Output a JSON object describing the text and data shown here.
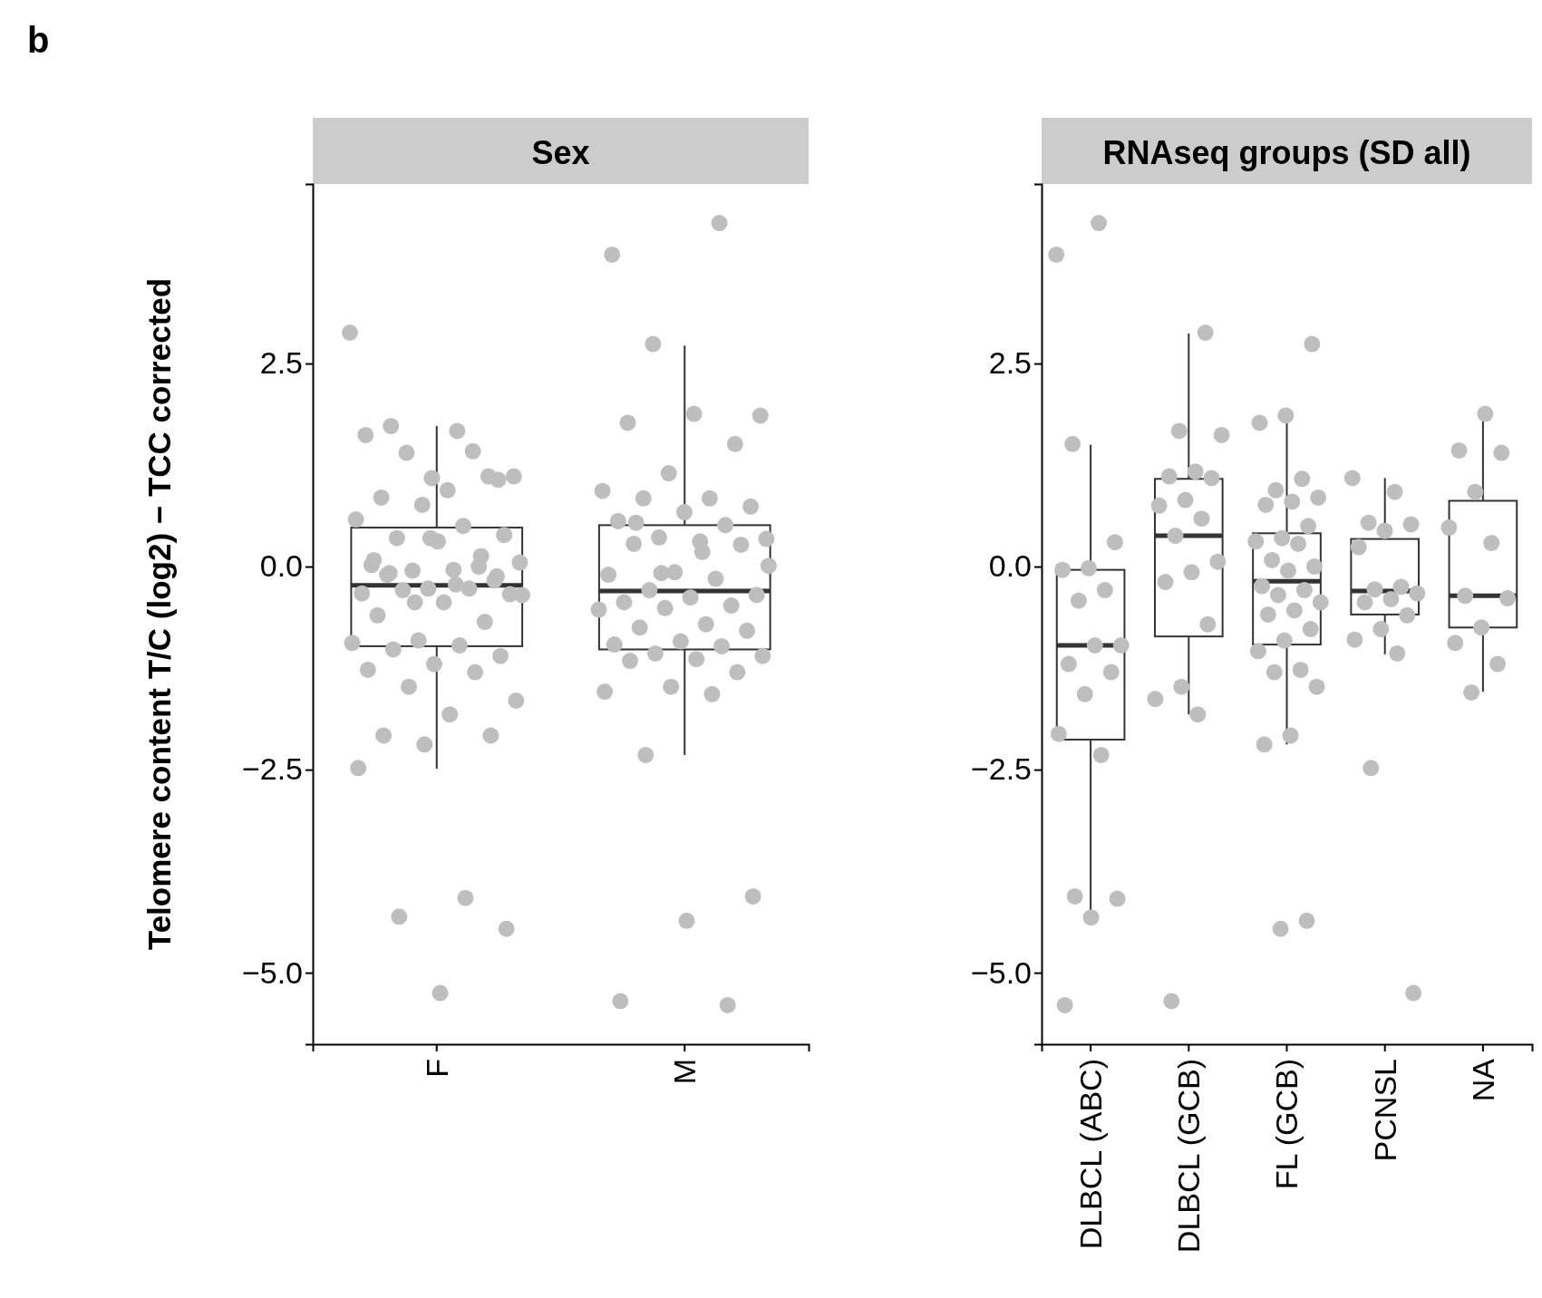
{
  "chart_data": [
    {
      "type": "box",
      "title": "Sex",
      "ylabel": "Telomere content T/C (log2) − TCC corrected",
      "annotations": [
        "b"
      ],
      "categories": [
        "F",
        "M"
      ],
      "boxes": [
        {
          "low": -2.49,
          "q1": -0.98,
          "median": -0.23,
          "q3": 0.48,
          "high": 1.73
        },
        {
          "low": -2.32,
          "q1": -1.02,
          "median": -0.3,
          "q3": 0.51,
          "high": 2.72
        }
      ],
      "ylim": [
        -5.88,
        4.71
      ],
      "yticks": [
        {
          "value": -5,
          "label": "−5.0"
        },
        {
          "value": -2.5,
          "label": "−2.5"
        },
        {
          "value": 0,
          "label": "0.0"
        },
        {
          "value": 2.5,
          "label": "2.5"
        }
      ],
      "series": [
        {
          "type": "scatter",
          "color": "#bebebe",
          "x": [
            "F",
            "F",
            "F",
            "F",
            "F",
            "F",
            "F",
            "F",
            "F",
            "F",
            "F",
            "F",
            "F",
            "F",
            "F",
            "F",
            "F",
            "F",
            "F",
            "F",
            "F",
            "F",
            "F",
            "F",
            "F",
            "F",
            "F",
            "F",
            "F",
            "F",
            "F",
            "F",
            "F",
            "F",
            "F",
            "F",
            "F",
            "F",
            "F",
            "F",
            "F",
            "F",
            "F",
            "F",
            "F",
            "F",
            "F",
            "F",
            "F",
            "F",
            "F",
            "F",
            "F",
            "F",
            "F",
            "F",
            "F",
            "F",
            "F",
            "F",
            "M",
            "M",
            "M",
            "M",
            "M",
            "M",
            "M",
            "M",
            "M",
            "M",
            "M",
            "M",
            "M",
            "M",
            "M",
            "M",
            "M",
            "M",
            "M",
            "M",
            "M",
            "M",
            "M",
            "M",
            "M",
            "M",
            "M",
            "M",
            "M",
            "M",
            "M",
            "M",
            "M",
            "M",
            "M",
            "M",
            "M",
            "M",
            "M",
            "M",
            "M",
            "M",
            "M",
            "M",
            "M",
            "M",
            "M",
            "M",
            "M",
            "M",
            "M",
            "M",
            "M"
          ],
          "values": [
            2.88,
            1.67,
            1.73,
            1.07,
            1.09,
            1.62,
            1.42,
            1.4,
            1.11,
            0.94,
            0.85,
            1.11,
            0.76,
            0.58,
            0.5,
            0.35,
            0.39,
            0.31,
            0.02,
            0,
            -0.05,
            0.05,
            -0.04,
            -0.1,
            -0.17,
            -0.27,
            -0.33,
            -0.27,
            -0.29,
            -0.34,
            -0.44,
            -0.6,
            -0.68,
            -0.91,
            -0.94,
            -0.97,
            -1.02,
            -1.1,
            -1.2,
            -1.27,
            -1.3,
            -1.48,
            -1.65,
            -1.82,
            -2.08,
            -2.08,
            -2.19,
            -2.48,
            -4.08,
            -4.31,
            -4.46,
            -5.25,
            0.08,
            0.13,
            -0.44,
            -0.35,
            -0.22,
            -0.08,
            -0.12,
            0.35,
            3.84,
            4.23,
            2.74,
            1.86,
            1.88,
            1.77,
            1.51,
            1.15,
            0.93,
            0.84,
            0.84,
            0.74,
            0.67,
            0.56,
            0.51,
            0.36,
            0.34,
            0.31,
            0.28,
            0.27,
            -0.07,
            -0.1,
            -0.15,
            -0.29,
            -0.35,
            -0.38,
            -0.44,
            -0.48,
            -0.51,
            -0.53,
            -0.71,
            -0.75,
            -0.79,
            -0.92,
            -0.96,
            -0.98,
            -1.07,
            -1.1,
            -1.14,
            -1.16,
            -1.3,
            -1.48,
            -1.54,
            -1.57,
            -2.32,
            -4.06,
            -4.36,
            -5.35,
            -5.4,
            -0.08,
            0.01,
            0.18,
            0.54
          ]
        }
      ]
    },
    {
      "type": "box",
      "title": "RNAseq groups (SD all)",
      "categories": [
        "DLBCL (ABC)",
        "DLBCL (GCB)",
        "FL (GCB)",
        "PCNSL",
        "NA"
      ],
      "boxes": [
        {
          "low": -4.32,
          "q1": -2.13,
          "median": -0.97,
          "q3": -0.04,
          "high": 1.5
        },
        {
          "low": -1.82,
          "q1": -0.86,
          "median": 0.38,
          "q3": 1.08,
          "high": 2.87
        },
        {
          "low": -2.19,
          "q1": -0.96,
          "median": -0.18,
          "q3": 0.41,
          "high": 1.84
        },
        {
          "low": -1.08,
          "q1": -0.59,
          "median": -0.3,
          "q3": 0.34,
          "high": 1.09
        },
        {
          "low": -1.54,
          "q1": -0.75,
          "median": -0.36,
          "q3": 0.81,
          "high": 1.85
        }
      ],
      "ylim": [
        -5.88,
        4.71
      ],
      "yticks": [
        {
          "value": -5,
          "label": "−5.0"
        },
        {
          "value": -2.5,
          "label": "−2.5"
        },
        {
          "value": 0,
          "label": "0.0"
        },
        {
          "value": 2.5,
          "label": "2.5"
        }
      ],
      "series": [
        {
          "type": "scatter",
          "color": "#bebebe",
          "x": [
            "DLBCL (ABC)",
            "DLBCL (ABC)",
            "DLBCL (ABC)",
            "DLBCL (ABC)",
            "DLBCL (ABC)",
            "DLBCL (ABC)",
            "DLBCL (ABC)",
            "DLBCL (ABC)",
            "DLBCL (ABC)",
            "DLBCL (ABC)",
            "DLBCL (ABC)",
            "DLBCL (ABC)",
            "DLBCL (ABC)",
            "DLBCL (ABC)",
            "DLBCL (ABC)",
            "DLBCL (ABC)",
            "DLBCL (ABC)",
            "DLBCL (ABC)",
            "DLBCL (ABC)",
            "DLBCL (GCB)",
            "DLBCL (GCB)",
            "DLBCL (GCB)",
            "DLBCL (GCB)",
            "DLBCL (GCB)",
            "DLBCL (GCB)",
            "DLBCL (GCB)",
            "DLBCL (GCB)",
            "DLBCL (GCB)",
            "DLBCL (GCB)",
            "DLBCL (GCB)",
            "DLBCL (GCB)",
            "DLBCL (GCB)",
            "DLBCL (GCB)",
            "DLBCL (GCB)",
            "DLBCL (GCB)",
            "DLBCL (GCB)",
            "DLBCL (GCB)",
            "FL (GCB)",
            "FL (GCB)",
            "FL (GCB)",
            "FL (GCB)",
            "FL (GCB)",
            "FL (GCB)",
            "FL (GCB)",
            "FL (GCB)",
            "FL (GCB)",
            "FL (GCB)",
            "FL (GCB)",
            "FL (GCB)",
            "FL (GCB)",
            "FL (GCB)",
            "FL (GCB)",
            "FL (GCB)",
            "FL (GCB)",
            "FL (GCB)",
            "FL (GCB)",
            "FL (GCB)",
            "FL (GCB)",
            "FL (GCB)",
            "FL (GCB)",
            "FL (GCB)",
            "FL (GCB)",
            "FL (GCB)",
            "FL (GCB)",
            "FL (GCB)",
            "FL (GCB)",
            "FL (GCB)",
            "FL (GCB)",
            "PCNSL",
            "PCNSL",
            "PCNSL",
            "PCNSL",
            "PCNSL",
            "PCNSL",
            "PCNSL",
            "PCNSL",
            "PCNSL",
            "PCNSL",
            "PCNSL",
            "PCNSL",
            "PCNSL",
            "PCNSL",
            "PCNSL",
            "PCNSL",
            "PCNSL",
            "NA",
            "NA",
            "NA",
            "NA",
            "NA",
            "NA",
            "NA",
            "NA",
            "NA",
            "NA",
            "NA",
            "NA"
          ],
          "values": [
            3.84,
            4.23,
            1.51,
            0.3,
            -0.02,
            -0.04,
            -0.29,
            -0.42,
            -0.97,
            -0.97,
            -1.2,
            -1.3,
            -1.57,
            -2.06,
            -2.32,
            -4.06,
            -4.09,
            -4.32,
            -5.4,
            2.88,
            1.67,
            1.62,
            1.17,
            1.11,
            1.09,
            0.82,
            0.75,
            0.59,
            0.38,
            0.06,
            -0.07,
            -0.19,
            -0.71,
            -1.48,
            -1.63,
            -1.82,
            -5.35,
            2.74,
            1.86,
            1.77,
            1.08,
            0.94,
            0.85,
            0.8,
            0.76,
            0.5,
            0.35,
            0.31,
            0.28,
            0.08,
            0,
            -0.05,
            -0.24,
            -0.29,
            -0.35,
            -0.44,
            -0.54,
            -0.59,
            -0.77,
            -0.91,
            -1.04,
            -1.27,
            -1.3,
            -1.48,
            -2.08,
            -2.19,
            -4.36,
            -4.46,
            1.09,
            0.92,
            0.54,
            0.52,
            0.44,
            0.24,
            -0.25,
            -0.28,
            -0.33,
            -0.4,
            -0.44,
            -0.6,
            -0.77,
            -0.9,
            -1.07,
            -2.48,
            -5.25,
            1.88,
            1.43,
            1.4,
            0.92,
            0.48,
            0.29,
            -0.36,
            -0.39,
            -0.75,
            -0.94,
            -1.2,
            -1.55
          ]
        }
      ]
    }
  ]
}
